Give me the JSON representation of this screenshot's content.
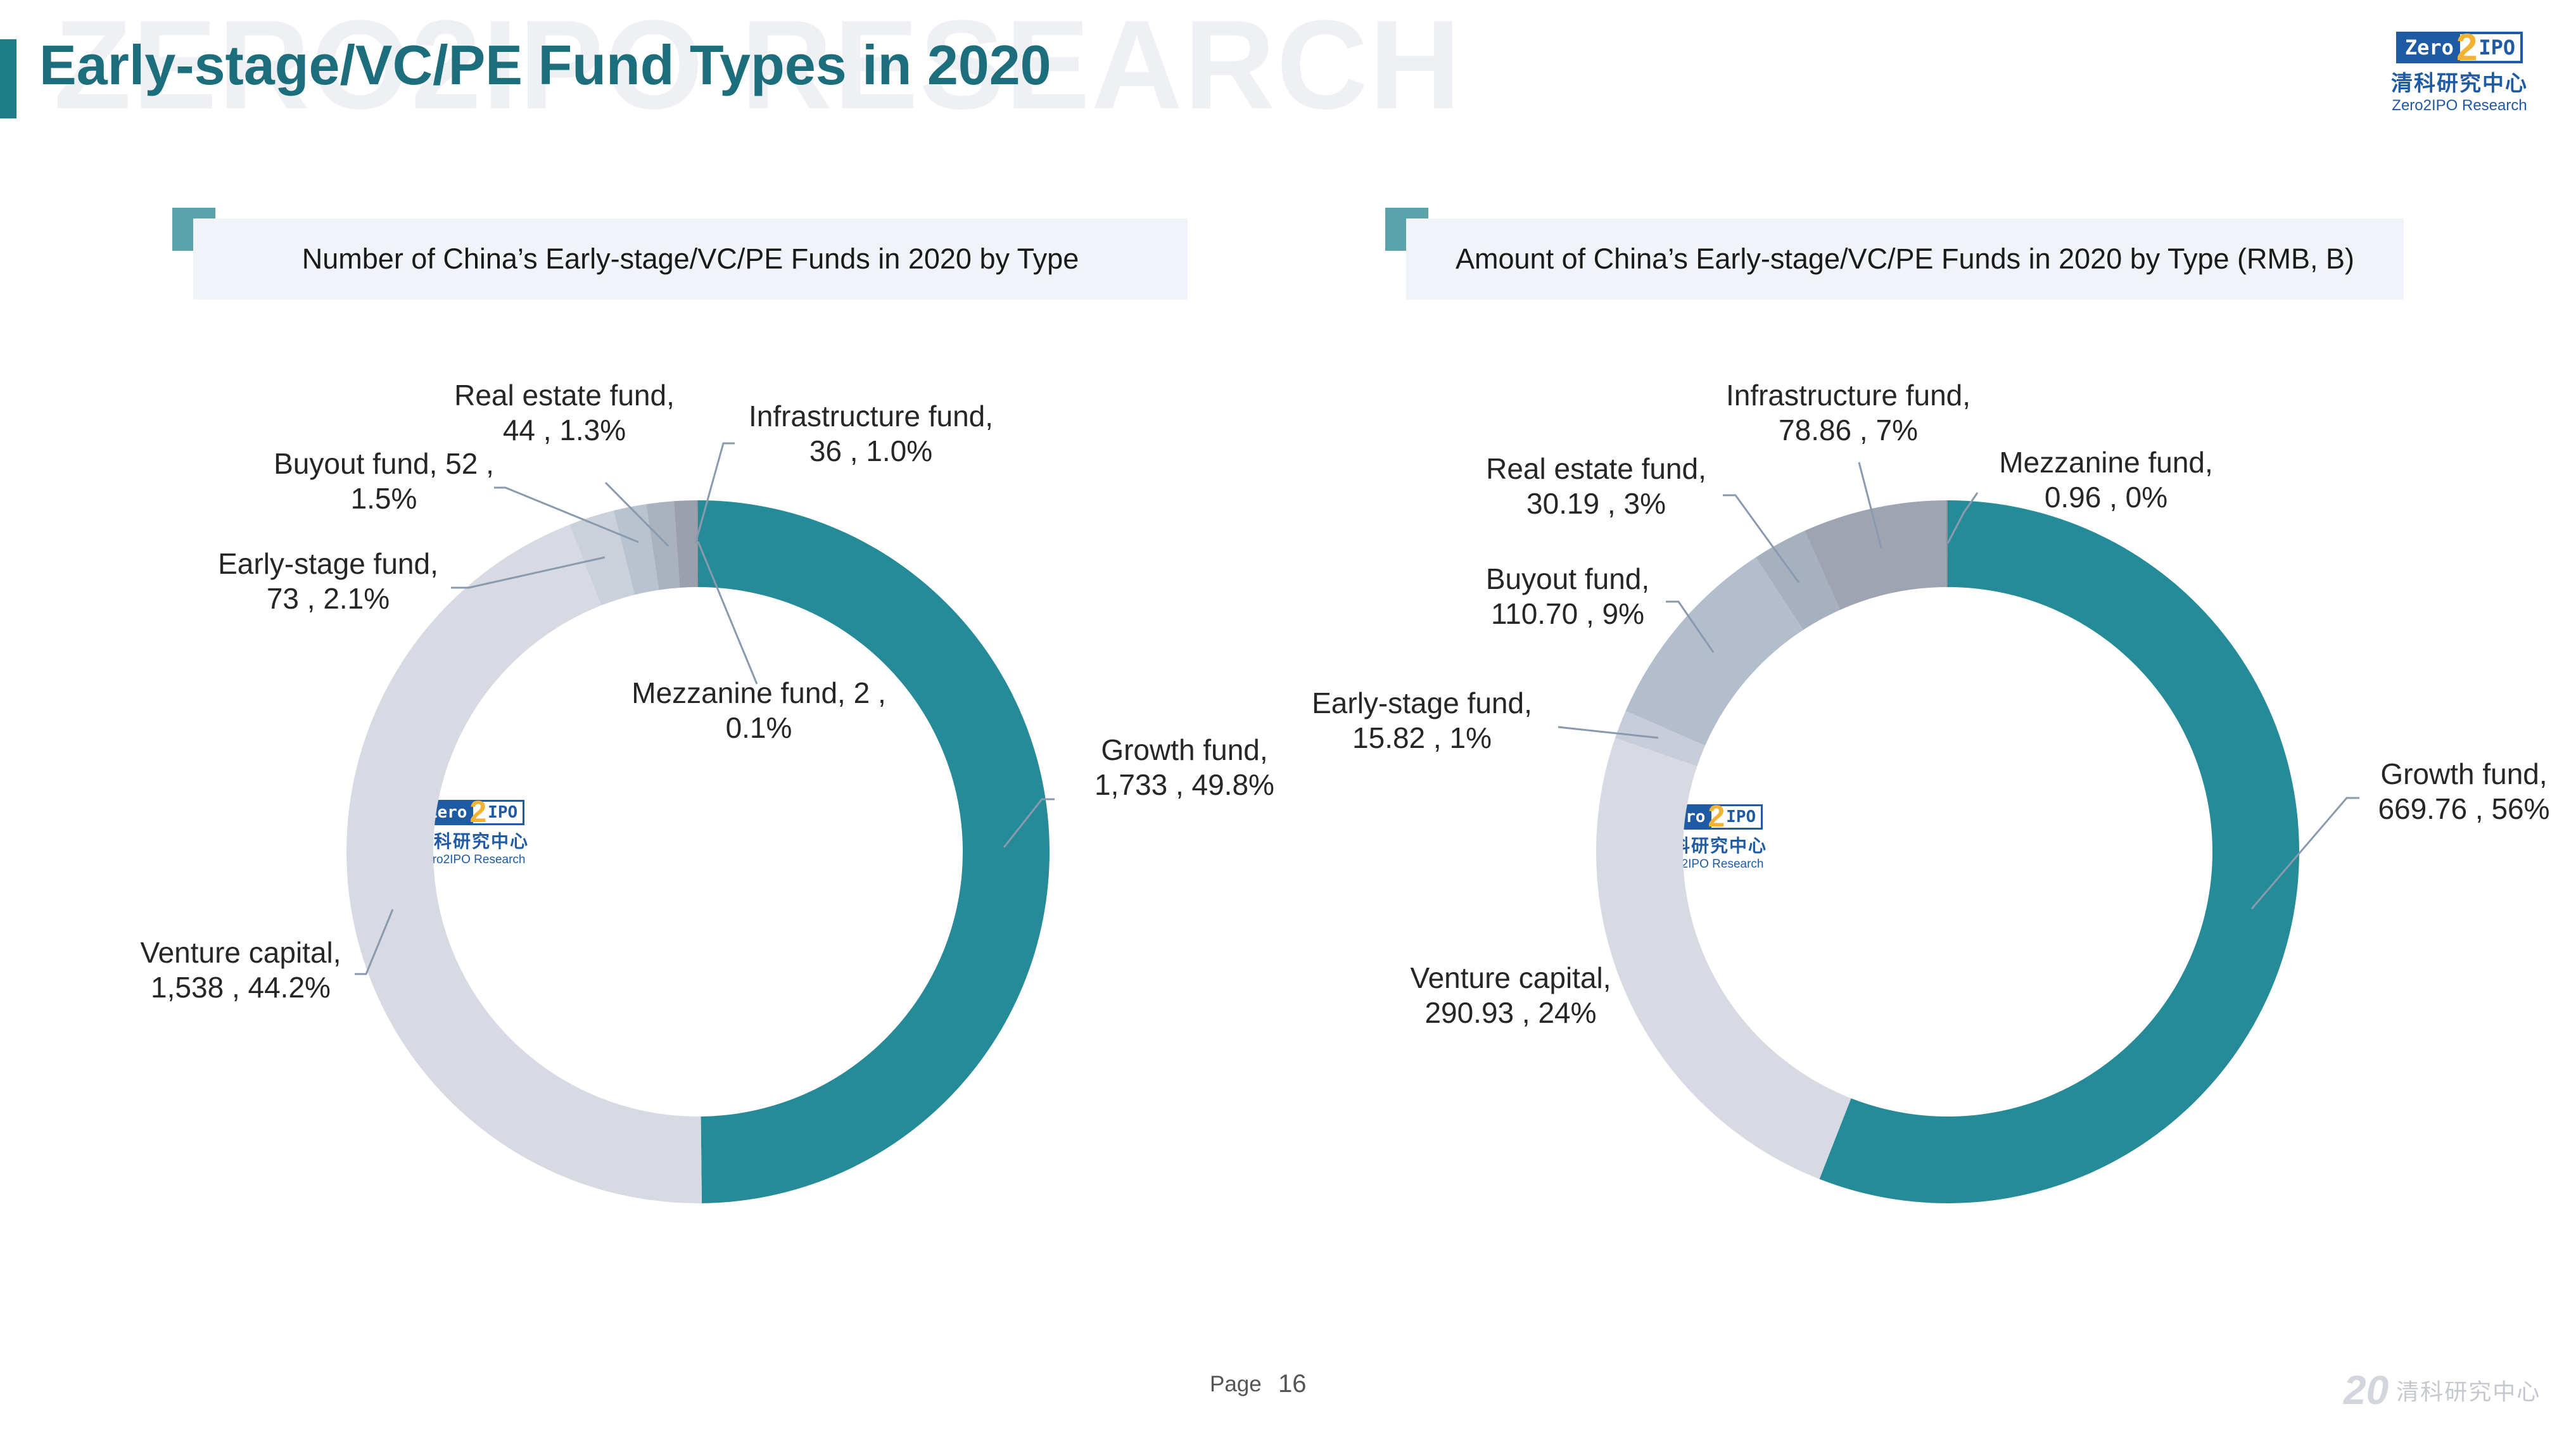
{
  "watermark": "ZERO2IPO RESEARCH",
  "page_title": "Early-stage/VC/PE Fund Types in 2020",
  "logo": {
    "zero": "Zero",
    "two": "2",
    "ipo": "IPO",
    "cn": "清科研究中心",
    "en": "Zero2IPO Research"
  },
  "footer": {
    "page_label": "Page",
    "page_number": "16",
    "brand_number": "20",
    "brand_cn": "清科研究中心"
  },
  "colors": {
    "teal": "#268b98",
    "light": "#d7dae3",
    "blue_grey_1": "#c8ced9",
    "blue_grey_2": "#b3bdcc",
    "grey_dark": "#9ea4b1",
    "grey_darker": "#8f939e"
  },
  "chart_data": [
    {
      "type": "pie",
      "subtitle": "Number of China’s Early-stage/VC/PE Funds in 2020 by Type",
      "slices": [
        {
          "name": "Growth fund",
          "value": 1733,
          "label": [
            "Growth fund,",
            "1,733 , 49.8%"
          ],
          "color": "#268b98"
        },
        {
          "name": "Venture capital",
          "value": 1538,
          "label": [
            "Venture capital,",
            "1,538 , 44.2%"
          ],
          "color": "#d7dae3"
        },
        {
          "name": "Early-stage fund",
          "value": 73,
          "label": [
            "Early-stage fund,",
            "73 , 2.1%"
          ],
          "color": "#cbd1db"
        },
        {
          "name": "Buyout fund",
          "value": 52,
          "label": [
            "Buyout fund, 52 ,",
            "1.5%"
          ],
          "color": "#b9c2cf"
        },
        {
          "name": "Real estate fund",
          "value": 44,
          "label": [
            "Real estate fund,",
            "44 , 1.3%"
          ],
          "color": "#aab1bf"
        },
        {
          "name": "Infrastructure fund",
          "value": 36,
          "label": [
            "Infrastructure fund,",
            "36 , 1.0%"
          ],
          "color": "#9aa0ad"
        },
        {
          "name": "Mezzanine fund",
          "value": 2,
          "label": [
            "Mezzanine fund, 2 ,",
            "0.1%"
          ],
          "color": "#8f939e"
        }
      ]
    },
    {
      "type": "pie",
      "subtitle": "Amount of China’s Early-stage/VC/PE Funds in 2020 by Type (RMB, B)",
      "slices": [
        {
          "name": "Growth fund",
          "value": 669.76,
          "label": [
            "Growth fund,",
            "669.76 , 56%"
          ],
          "color": "#268b98"
        },
        {
          "name": "Venture capital",
          "value": 290.93,
          "label": [
            "Venture capital,",
            "290.93 , 24%"
          ],
          "color": "#d7dae3"
        },
        {
          "name": "Early-stage fund",
          "value": 15.82,
          "label": [
            "Early-stage fund,",
            "15.82 , 1%"
          ],
          "color": "#c8ced9"
        },
        {
          "name": "Buyout fund",
          "value": 110.7,
          "label": [
            "Buyout fund,",
            "110.70 , 9%"
          ],
          "color": "#b3bdcc"
        },
        {
          "name": "Real estate fund",
          "value": 30.19,
          "label": [
            "Real estate fund,",
            "30.19 , 3%"
          ],
          "color": "#a7b0bf"
        },
        {
          "name": "Infrastructure fund",
          "value": 78.86,
          "label": [
            "Infrastructure fund,",
            "78.86 , 7%"
          ],
          "color": "#9ea4b1"
        },
        {
          "name": "Mezzanine fund",
          "value": 0.96,
          "label": [
            "Mezzanine fund,",
            "0.96 , 0%"
          ],
          "color": "#8f939e"
        }
      ]
    }
  ]
}
